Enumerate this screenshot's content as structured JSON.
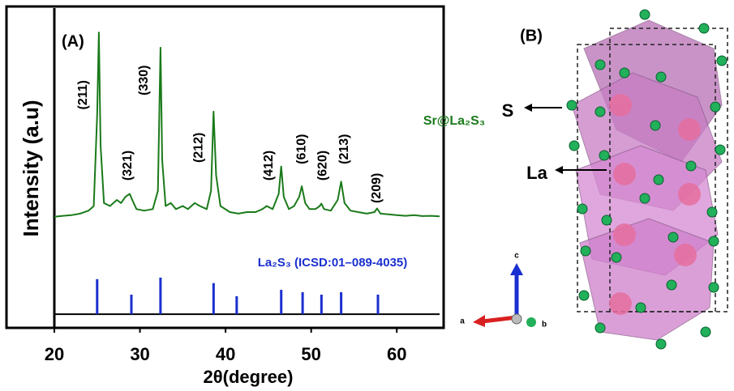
{
  "chart_data": {
    "type": "xrd",
    "panel_label": "(A)",
    "xlabel": "2θ(degree)",
    "ylabel": "Intensity (a.u)",
    "xlim": [
      20,
      65
    ],
    "xticks": [
      20,
      30,
      40,
      50,
      60
    ],
    "ylim": [
      0,
      105
    ],
    "series": [
      {
        "name": "Sr@La₂S₃",
        "color": "#1a7a1a",
        "style": "line",
        "x": [
          20,
          21,
          22,
          23,
          24,
          24.6,
          25.0,
          25.2,
          25.4,
          25.8,
          26.5,
          27.3,
          27.8,
          28.3,
          28.8,
          29.1,
          29.6,
          30.5,
          31.5,
          32.1,
          32.4,
          32.6,
          33.0,
          33.6,
          34.2,
          35.0,
          35.6,
          36.4,
          37.0,
          37.8,
          38.3,
          38.6,
          38.9,
          39.4,
          40.5,
          41.5,
          42.5,
          43.5,
          44.3,
          44.8,
          45.5,
          46.2,
          46.5,
          46.8,
          47.4,
          48.0,
          48.6,
          48.9,
          49.3,
          49.8,
          50.5,
          51.0,
          51.2,
          51.5,
          52.3,
          53.1,
          53.5,
          53.9,
          54.6,
          55.5,
          56.5,
          57.4,
          57.7,
          58.1,
          59.0,
          60,
          61,
          62,
          63,
          64,
          65
        ],
        "values": [
          36.5,
          36.8,
          37.0,
          37.5,
          38.5,
          40,
          70,
          97,
          60,
          41,
          40,
          42,
          41,
          43,
          44,
          42,
          39,
          38.5,
          39,
          45,
          92,
          55,
          40,
          41,
          39,
          40,
          39,
          41,
          40,
          39,
          45,
          71,
          50,
          40,
          38,
          37.5,
          38,
          38,
          39,
          40,
          39,
          44,
          53,
          43,
          39,
          40,
          43,
          46.5,
          41,
          39,
          39,
          40,
          40.8,
          39,
          38.5,
          42,
          48,
          41,
          38.5,
          38,
          37.5,
          38,
          39.2,
          37.5,
          37.3,
          37,
          36.8,
          37,
          36.7,
          36.8,
          36.6
        ]
      },
      {
        "name": "La₂S₃ (ICSD:01–089-4035)",
        "color": "#1a2fcf",
        "style": "stick",
        "baseline": 4.5,
        "x": [
          25.0,
          29.0,
          32.4,
          38.6,
          41.3,
          46.5,
          49.0,
          51.2,
          53.5,
          57.8
        ],
        "values": [
          16,
          10.9,
          16.5,
          14.7,
          10.4,
          12.5,
          11.7,
          10.9,
          11.7,
          10.9
        ]
      }
    ],
    "annotations": [
      {
        "text": "(211)",
        "x": 23.4,
        "y": 76.5
      },
      {
        "text": "(321)",
        "x": 28.6,
        "y": 53.3
      },
      {
        "text": "(330)",
        "x": 30.5,
        "y": 81.3
      },
      {
        "text": "(212)",
        "x": 36.9,
        "y": 59.2
      },
      {
        "text": "(412)",
        "x": 45.1,
        "y": 53.3
      },
      {
        "text": "(610)",
        "x": 48.9,
        "y": 58.7
      },
      {
        "text": "(620)",
        "x": 51.4,
        "y": 53.3
      },
      {
        "text": "(213)",
        "x": 53.9,
        "y": 58.7
      },
      {
        "text": "(209)",
        "x": 57.7,
        "y": 45.9
      }
    ]
  },
  "structure": {
    "label": "(B)",
    "atoms": [
      "S",
      "La"
    ],
    "axes": [
      "a",
      "b",
      "c"
    ]
  }
}
